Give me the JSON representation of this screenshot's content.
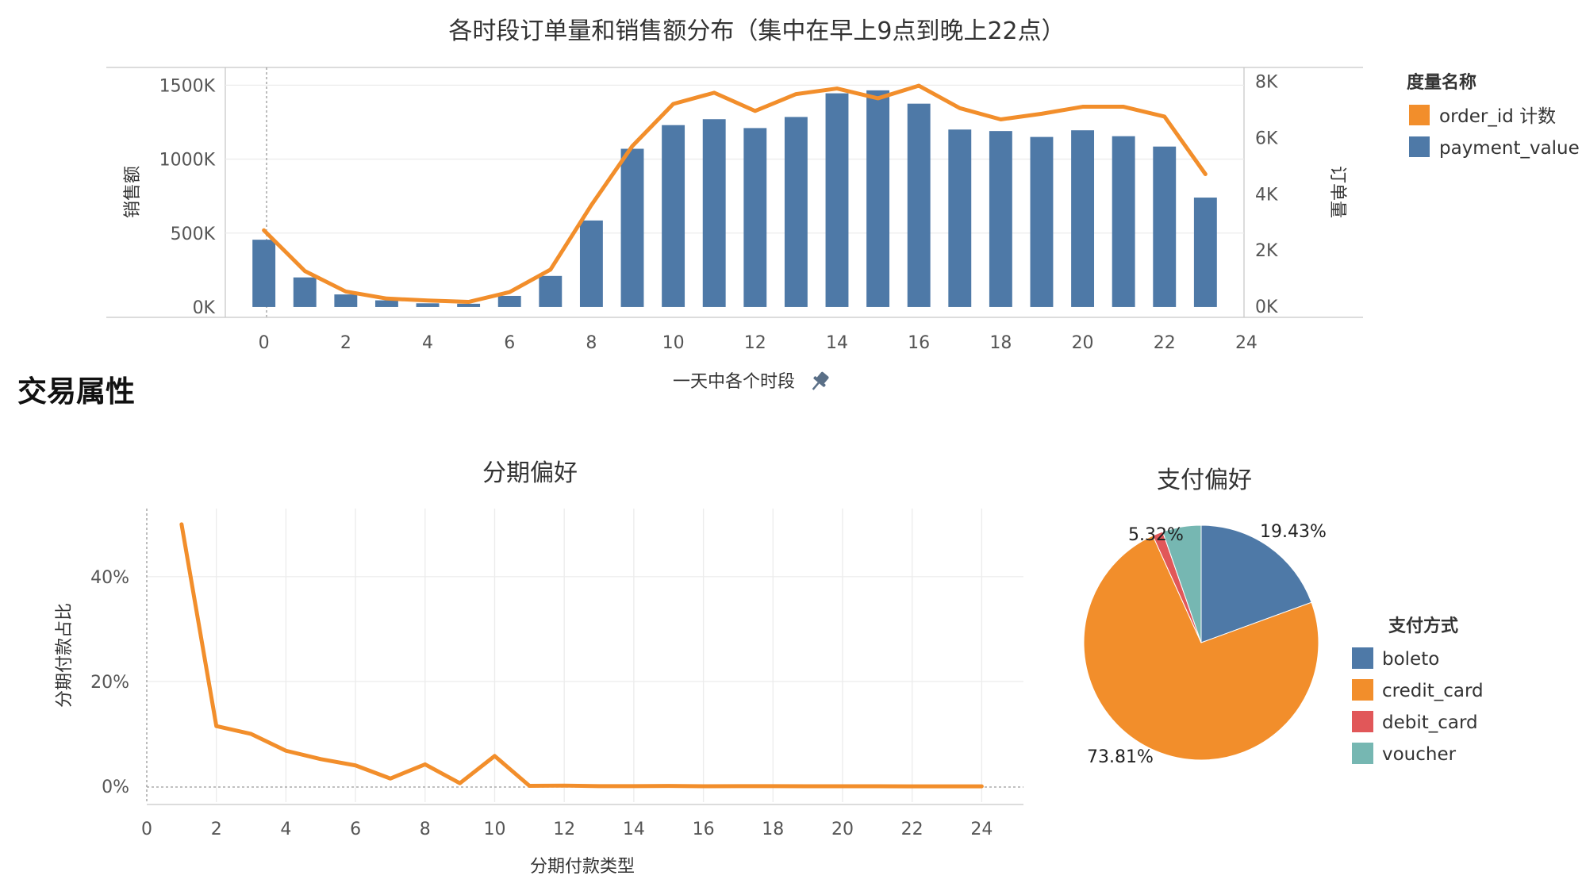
{
  "colors": {
    "blue": "#4e79a7",
    "orange": "#f28e2b",
    "red": "#e15759",
    "teal": "#76b7b2"
  },
  "section_title": "交易属性",
  "chart_data": [
    {
      "type": "bar",
      "title": "各时段订单量和销售额分布（集中在早上9点到晚上22点）",
      "xlabel": "一天中各个时段",
      "xlabel_icon": "pin-icon",
      "ylabel": "销售额",
      "y2label": "订单量",
      "xlim": [
        -3.85,
        26.85
      ],
      "x_ticks": [
        0,
        2,
        4,
        6,
        8,
        10,
        12,
        14,
        16,
        18,
        20,
        22,
        24
      ],
      "ylim": [
        -70000,
        1620000
      ],
      "y_ticks": [
        0,
        500000,
        1000000,
        1500000
      ],
      "y_tick_labels": [
        "0K",
        "500K",
        "1000K",
        "1500K"
      ],
      "y2lim": [
        -400,
        8500
      ],
      "y2_ticks": [
        0,
        2000,
        4000,
        6000,
        8000
      ],
      "y2_tick_labels": [
        "0K",
        "2K",
        "4K",
        "6K",
        "8K"
      ],
      "grid": true,
      "legend_title": "度量名称",
      "legend_position": "right",
      "series": [
        {
          "name": "order_id 计数",
          "type": "line",
          "axis": "right",
          "color": "#f28e2b",
          "x": [
            0,
            1,
            2,
            3,
            4,
            5,
            6,
            7,
            8,
            9,
            10,
            11,
            12,
            13,
            14,
            15,
            16,
            17,
            18,
            19,
            20,
            21,
            22,
            23
          ],
          "values": [
            2700,
            1250,
            520,
            270,
            200,
            150,
            500,
            1300,
            3600,
            5700,
            7200,
            7600,
            6950,
            7550,
            7750,
            7400,
            7850,
            7050,
            6650,
            6850,
            7100,
            7100,
            6750,
            4700
          ]
        },
        {
          "name": "payment_value",
          "type": "bar",
          "axis": "left",
          "color": "#4e79a7",
          "x": [
            0,
            1,
            2,
            3,
            4,
            5,
            6,
            7,
            8,
            9,
            10,
            11,
            12,
            13,
            14,
            15,
            16,
            17,
            18,
            19,
            20,
            21,
            22,
            23
          ],
          "values": [
            455000,
            200000,
            85000,
            45000,
            25000,
            22000,
            75000,
            210000,
            585000,
            1070000,
            1230000,
            1270000,
            1210000,
            1285000,
            1445000,
            1465000,
            1375000,
            1200000,
            1190000,
            1150000,
            1195000,
            1155000,
            1085000,
            740000
          ]
        }
      ]
    },
    {
      "type": "line",
      "title": "分期偏好",
      "xlabel": "分期付款类型",
      "ylabel": "分期付款占比",
      "xlim": [
        0,
        25.2
      ],
      "x_ticks": [
        0,
        2,
        4,
        6,
        8,
        10,
        12,
        14,
        16,
        18,
        20,
        22,
        24
      ],
      "ylim": [
        -3,
        53
      ],
      "y_ticks": [
        0,
        20,
        40
      ],
      "y_tick_labels": [
        "0%",
        "20%",
        "40%"
      ],
      "grid": true,
      "series": [
        {
          "color": "#f28e2b",
          "x": [
            1,
            2,
            3,
            4,
            5,
            6,
            7,
            8,
            9,
            10,
            11,
            12,
            13,
            14,
            15,
            16,
            17,
            18,
            19,
            20,
            21,
            22,
            23,
            24
          ],
          "values": [
            50,
            11.5,
            10,
            6.8,
            5.2,
            4,
            1.5,
            4.2,
            0.6,
            5.8,
            0.1,
            0.15,
            0.05,
            0.05,
            0.08,
            0.03,
            0.04,
            0.04,
            0.02,
            0.02,
            0.02,
            0.01,
            0.01,
            0.01
          ]
        }
      ]
    },
    {
      "type": "pie",
      "title": "支付偏好",
      "legend_title": "支付方式",
      "legend_position": "right",
      "slices": [
        {
          "name": "boleto",
          "value": 19.43,
          "label": "19.43%",
          "color": "#4e79a7"
        },
        {
          "name": "credit_card",
          "value": 73.81,
          "label": "73.81%",
          "color": "#f28e2b"
        },
        {
          "name": "debit_card",
          "value": 1.44,
          "label": "",
          "color": "#e15759"
        },
        {
          "name": "voucher",
          "value": 5.32,
          "label": "5.32%",
          "color": "#76b7b2"
        }
      ]
    }
  ]
}
